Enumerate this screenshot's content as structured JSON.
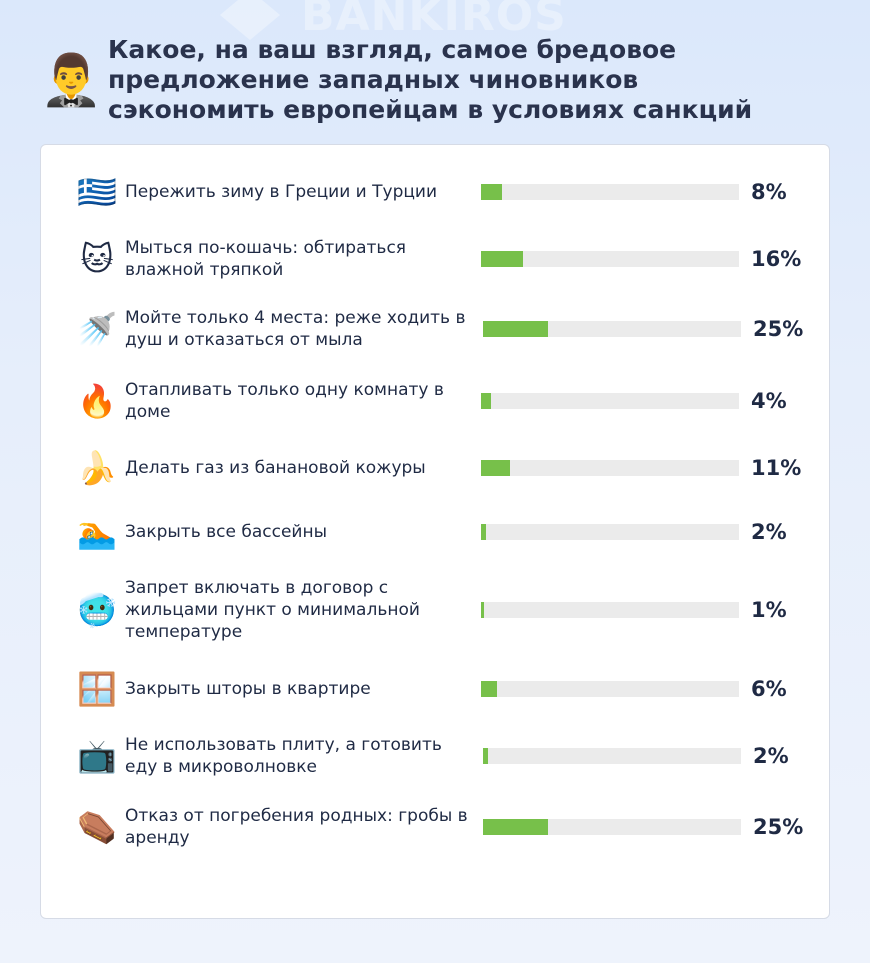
{
  "watermark": {
    "text": "BANKIROS"
  },
  "header": {
    "emoji": "🤵‍♂️",
    "title": "Какое, на ваш взгляд, самое бредовое предложение западных чиновников сэкономить европейцам в условиях санкций"
  },
  "colors": {
    "bar_fill": "#77c04a",
    "bar_track": "#ebebeb",
    "background": "#dbe8fb"
  },
  "chart_data": {
    "type": "bar",
    "title": "Какое, на ваш взгляд, самое бредовое предложение западных чиновников сэкономить европейцам в условиях санкций",
    "orientation": "horizontal",
    "unit": "%",
    "items": [
      {
        "icon": "🇬🇷",
        "icon_name": "greece-flag-icon",
        "label": "Пережить зиму в Греции и Турции",
        "value": 8,
        "value_label": "8%"
      },
      {
        "icon": "🐱",
        "icon_name": "cat-face-icon",
        "label": "Мыться по-кошачь: обтираться влажной тряпкой",
        "value": 16,
        "value_label": "16%"
      },
      {
        "icon": "🚿",
        "icon_name": "shower-icon",
        "label": "Мойте только 4 места: реже ходить в душ и отказаться от мыла",
        "value": 25,
        "value_label": "25%"
      },
      {
        "icon": "🔥",
        "icon_name": "fire-icon",
        "label": "Отапливать только одну комнату в доме",
        "value": 4,
        "value_label": "4%"
      },
      {
        "icon": "🍌",
        "icon_name": "banana-icon",
        "label": "Делать газ из банановой кожуры",
        "value": 11,
        "value_label": "11%"
      },
      {
        "icon": "🏊",
        "icon_name": "swimmer-icon",
        "label": "Закрыть все бассейны",
        "value": 2,
        "value_label": "2%"
      },
      {
        "icon": "🥶",
        "icon_name": "cold-face-icon",
        "label": "Запрет включать в договор с жильцами пункт о минимальной температуре",
        "value": 1,
        "value_label": "1%"
      },
      {
        "icon": "🪟",
        "icon_name": "window-icon",
        "label": "Закрыть шторы в квартире",
        "value": 6,
        "value_label": "6%"
      },
      {
        "icon": "📺",
        "icon_name": "microwave-icon",
        "label": "Не использовать плиту, а готовить еду в микроволновке",
        "value": 2,
        "value_label": "2%"
      },
      {
        "icon": "⚰️",
        "icon_name": "coffin-icon",
        "label": "Отказ от погребения родных: гробы в аренду",
        "value": 25,
        "value_label": "25%"
      }
    ],
    "xlim": [
      0,
      100
    ]
  }
}
